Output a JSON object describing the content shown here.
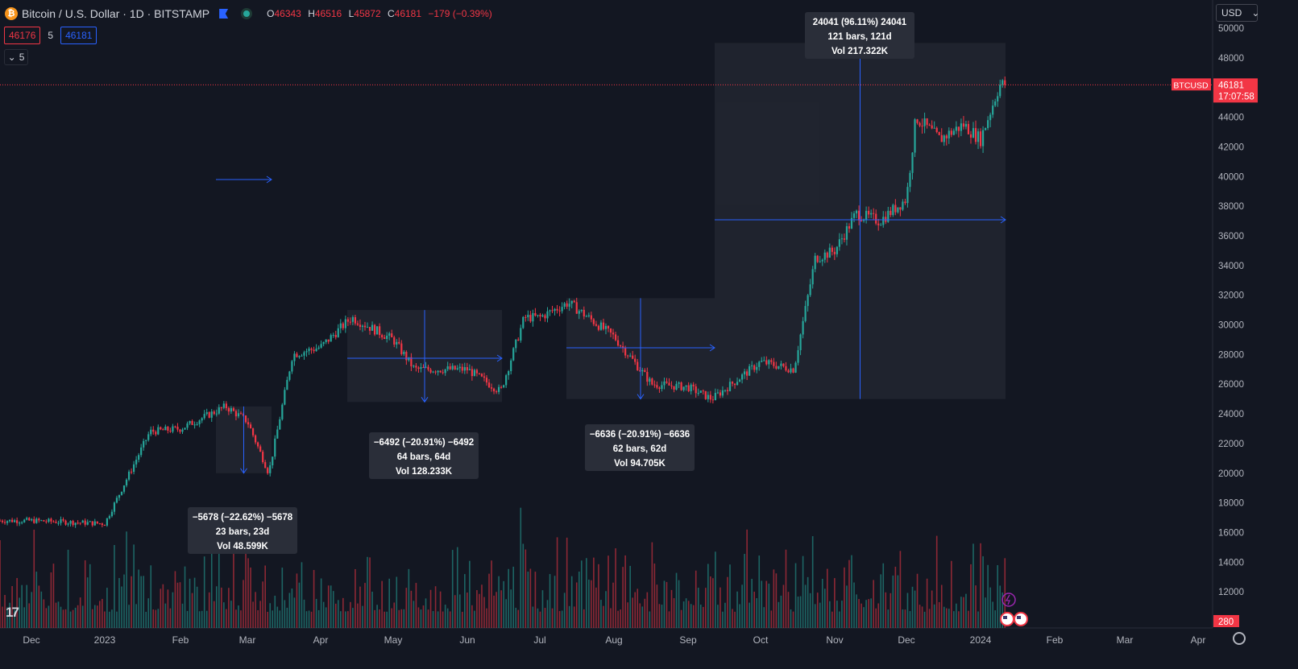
{
  "header": {
    "symbol_icon": "bitcoin-icon",
    "title": "Bitcoin / U.S. Dollar · 1D · BITSTAMP",
    "ohlc": [
      {
        "label": "O",
        "value": "46343"
      },
      {
        "label": "H",
        "value": "46516"
      },
      {
        "label": "L",
        "value": "45872"
      },
      {
        "label": "C",
        "value": "46181"
      }
    ],
    "change": "−179 (−0.39%)",
    "bid": "46176",
    "spread": "5",
    "ask": "46181",
    "indicators_toggle": "5"
  },
  "currency": "USD",
  "price_label": {
    "symbol": "BTCUSD",
    "price": "46181",
    "countdown": "17:07:58"
  },
  "volume_label": "280",
  "colors": {
    "background": "#131722",
    "up": "#26a69a",
    "down": "#f23645",
    "accent": "#2962ff",
    "box": "#2a2e39"
  },
  "chart_data": {
    "type": "candlestick",
    "y_axis": {
      "min": 10000,
      "max": 50000,
      "ticks": [
        12000,
        14000,
        16000,
        18000,
        20000,
        22000,
        24000,
        26000,
        28000,
        30000,
        32000,
        34000,
        36000,
        38000,
        40000,
        42000,
        44000,
        46000,
        48000,
        50000
      ]
    },
    "x_axis": {
      "ticks": [
        "Dec",
        "2023",
        "Feb",
        "Mar",
        "Apr",
        "May",
        "Jun",
        "Jul",
        "Aug",
        "Sep",
        "Oct",
        "Nov",
        "Dec",
        "2024",
        "Feb",
        "Mar",
        "Apr"
      ]
    },
    "last_price": 46181,
    "series_keypoints": [
      {
        "x": "Dec",
        "y": 16800
      },
      {
        "x": "2023",
        "y": 16600
      },
      {
        "x": "2023-01-20",
        "y": 22800
      },
      {
        "x": "Feb",
        "y": 23000
      },
      {
        "x": "Feb-20",
        "y": 24500
      },
      {
        "x": "Mar",
        "y": 23500
      },
      {
        "x": "Mar-10",
        "y": 20000
      },
      {
        "x": "Mar-20",
        "y": 28000
      },
      {
        "x": "Apr",
        "y": 28500
      },
      {
        "x": "Apr-14",
        "y": 30500
      },
      {
        "x": "May",
        "y": 29000
      },
      {
        "x": "May-10",
        "y": 27000
      },
      {
        "x": "Jun",
        "y": 27000
      },
      {
        "x": "Jun-15",
        "y": 25500
      },
      {
        "x": "Jun-25",
        "y": 30500
      },
      {
        "x": "Jul",
        "y": 30500
      },
      {
        "x": "Jul-13",
        "y": 31500
      },
      {
        "x": "Aug",
        "y": 29200
      },
      {
        "x": "Aug-17",
        "y": 26000
      },
      {
        "x": "Sep",
        "y": 25800
      },
      {
        "x": "Sep-11",
        "y": 25000
      },
      {
        "x": "Oct",
        "y": 27500
      },
      {
        "x": "Oct-15",
        "y": 27000
      },
      {
        "x": "Oct-24",
        "y": 34500
      },
      {
        "x": "Nov",
        "y": 35000
      },
      {
        "x": "Nov-10",
        "y": 37500
      },
      {
        "x": "Nov-20",
        "y": 37000
      },
      {
        "x": "Dec",
        "y": 38500
      },
      {
        "x": "Dec-05",
        "y": 44000
      },
      {
        "x": "Dec-15",
        "y": 42500
      },
      {
        "x": "Dec-25",
        "y": 43500
      },
      {
        "x": "2024",
        "y": 42500
      },
      {
        "x": "2024-01-09",
        "y": 46181
      }
    ],
    "measurements": [
      {
        "label": "−5678 (−22.62%) −5678",
        "bars": "23 bars, 23d",
        "vol": "Vol 48.599K"
      },
      {
        "label": "−6492 (−20.91%) −6492",
        "bars": "64 bars, 64d",
        "vol": "Vol 128.233K"
      },
      {
        "label": "−6636 (−20.91%) −6636",
        "bars": "62 bars, 62d",
        "vol": "Vol 94.705K"
      },
      {
        "label": "24041 (96.11%) 24041",
        "bars": "121 bars, 121d",
        "vol": "Vol 217.322K"
      }
    ]
  }
}
